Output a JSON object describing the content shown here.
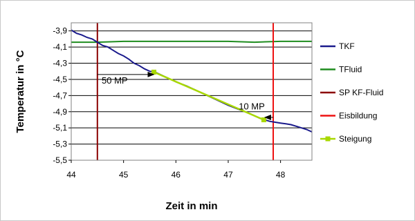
{
  "chart_data": {
    "type": "line",
    "title": "",
    "xlabel": "Zeit in min",
    "ylabel": "Temperatur in °C",
    "xlim": [
      44,
      48.6
    ],
    "ylim": [
      -5.5,
      -3.8
    ],
    "x_ticks": [
      44,
      45,
      46,
      47,
      48
    ],
    "y_ticks": [
      -3.9,
      -4.1,
      -4.3,
      -4.5,
      -4.7,
      -4.9,
      -5.1,
      -5.3,
      -5.5
    ],
    "x_tick_labels": [
      "44",
      "45",
      "46",
      "47",
      "48"
    ],
    "y_tick_labels": [
      "-3,9",
      "-4,1",
      "-4,3",
      "-4,5",
      "-4,7",
      "-4,9",
      "-5,1",
      "-5,3",
      "-5,5"
    ],
    "grid": "horizontal",
    "legend_position": "right",
    "series": [
      {
        "name": "TKF",
        "color": "#1a1a8c",
        "x": [
          44.0,
          44.1,
          44.2,
          44.3,
          44.4,
          44.5,
          44.6,
          44.7,
          44.8,
          44.9,
          45.0,
          45.1,
          45.2,
          45.3,
          45.4,
          45.5,
          45.6,
          45.8,
          46.0,
          46.2,
          46.4,
          46.6,
          46.8,
          47.0,
          47.2,
          47.4,
          47.6,
          47.7,
          47.8,
          47.9,
          48.0,
          48.1,
          48.2,
          48.3,
          48.4,
          48.5,
          48.6
        ],
        "y": [
          -3.89,
          -3.93,
          -3.95,
          -3.98,
          -4.0,
          -4.04,
          -4.08,
          -4.1,
          -4.14,
          -4.18,
          -4.21,
          -4.25,
          -4.3,
          -4.33,
          -4.37,
          -4.4,
          -4.41,
          -4.47,
          -4.53,
          -4.58,
          -4.64,
          -4.7,
          -4.76,
          -4.82,
          -4.87,
          -4.92,
          -4.98,
          -5.0,
          -5.02,
          -5.03,
          -5.04,
          -5.05,
          -5.06,
          -5.08,
          -5.1,
          -5.12,
          -5.15
        ]
      },
      {
        "name": "TFluid",
        "color": "#1e8c1e",
        "x": [
          44.0,
          44.5,
          45.0,
          45.5,
          46.0,
          46.5,
          47.0,
          47.5,
          48.0,
          48.6
        ],
        "y": [
          -4.04,
          -4.04,
          -4.03,
          -4.03,
          -4.03,
          -4.03,
          -4.03,
          -4.04,
          -4.03,
          -4.03
        ]
      },
      {
        "name": "SP KF-Fluid",
        "color": "#8b0000",
        "type": "vline",
        "x": [
          44.5,
          44.5
        ],
        "y": [
          -3.8,
          -5.5
        ]
      },
      {
        "name": "Eisbildung",
        "color": "#ee1111",
        "type": "vline",
        "x": [
          47.86,
          47.86
        ],
        "y": [
          -3.8,
          -5.5
        ]
      },
      {
        "name": "Steigung",
        "color": "#a8d800",
        "x": [
          45.58,
          47.68
        ],
        "y": [
          -4.41,
          -5.0
        ]
      }
    ],
    "annotations": [
      {
        "text": "50 MP",
        "arrow_from": [
          44.5,
          -4.44
        ],
        "arrow_to": [
          45.58,
          -4.44
        ],
        "text_at": [
          44.83,
          -4.55
        ]
      },
      {
        "text": "10 MP",
        "arrow_from": [
          47.86,
          -4.97
        ],
        "arrow_to": [
          47.7,
          -4.97
        ],
        "text_at": [
          47.45,
          -4.87
        ]
      }
    ]
  }
}
